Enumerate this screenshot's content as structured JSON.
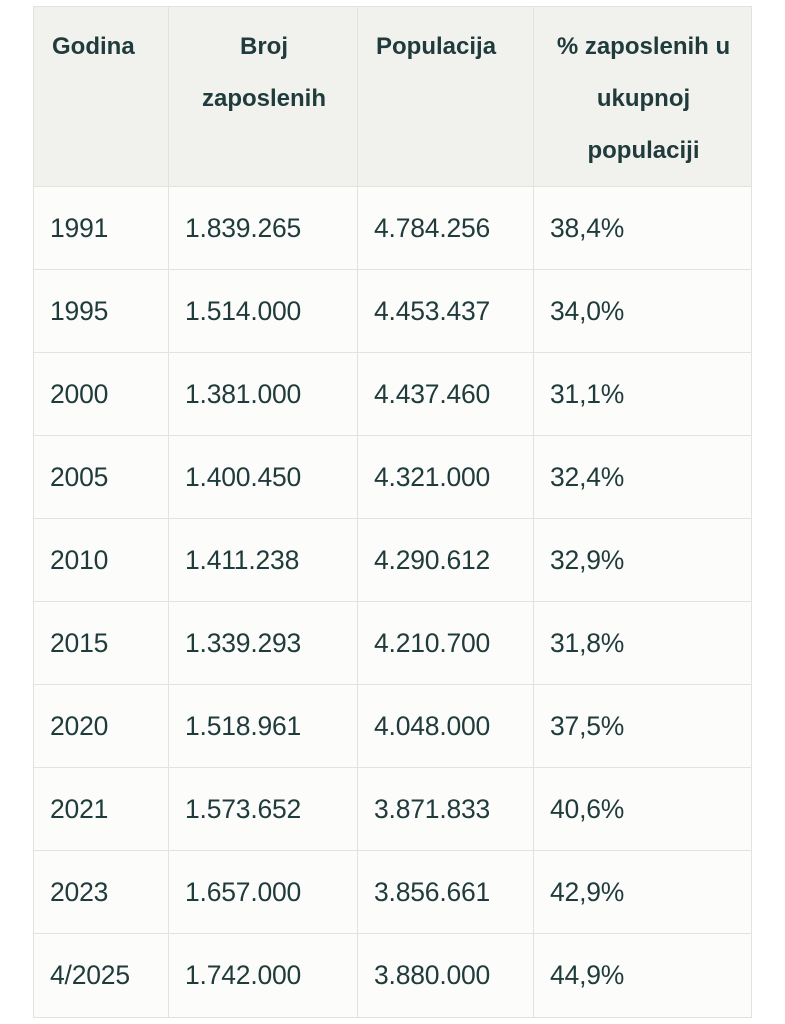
{
  "table": {
    "headers": [
      "Godina",
      "Broj zaposlenih",
      "Populacija",
      "% zaposlenih u ukupnoj populaciji"
    ],
    "rows": [
      [
        "1991",
        "1.839.265",
        "4.784.256",
        "38,4%"
      ],
      [
        "1995",
        "1.514.000",
        "4.453.437",
        "34,0%"
      ],
      [
        "2000",
        "1.381.000",
        "4.437.460",
        "31,1%"
      ],
      [
        "2005",
        "1.400.450",
        "4.321.000",
        "32,4%"
      ],
      [
        "2010",
        "1.411.238",
        "4.290.612",
        "32,9%"
      ],
      [
        "2015",
        "1.339.293",
        "4.210.700",
        "31,8%"
      ],
      [
        "2020",
        "1.518.961",
        "4.048.000",
        "37,5%"
      ],
      [
        "2021",
        "1.573.652",
        "3.871.833",
        "40,6%"
      ],
      [
        "2023",
        "1.657.000",
        "3.856.661",
        "42,9%"
      ],
      [
        "4/2025",
        "1.742.000",
        "3.880.000",
        "44,9%"
      ]
    ]
  },
  "colors": {
    "text": "#1f3b3b",
    "header_bg": "#f1f1ee",
    "cell_bg": "#fcfcfa",
    "border": "#e2e2de"
  }
}
